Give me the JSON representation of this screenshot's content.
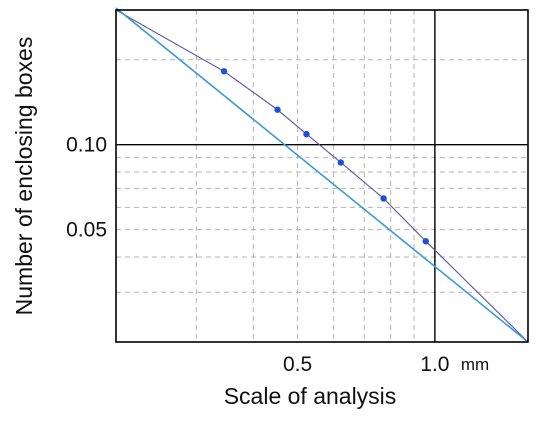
{
  "chart_data": {
    "type": "line",
    "title": "",
    "xlabel": "Scale of analysis",
    "ylabel": "Number of enclosing boxes",
    "x_unit": "mm",
    "x_scale": "log",
    "y_scale": "log",
    "xlim": [
      0.2,
      1.6
    ],
    "ylim": [
      0.02,
      0.3
    ],
    "x_ticks": [
      {
        "value": 0.5,
        "label": "0.5"
      },
      {
        "value": 1.0,
        "label": "1.0"
      }
    ],
    "y_ticks": [
      {
        "value": 0.05,
        "label": "0.05"
      },
      {
        "value": 0.1,
        "label": "0.10"
      }
    ],
    "major_x_lines": [
      1.0
    ],
    "major_y_lines": [
      0.1
    ],
    "minor_x_lines": [
      0.3,
      0.4,
      0.5,
      0.6,
      0.7,
      0.8,
      0.9
    ],
    "minor_y_lines": [
      0.03,
      0.04,
      0.05,
      0.06,
      0.07,
      0.08,
      0.09,
      0.2
    ],
    "grid": true,
    "colors": {
      "fit_line": "#3a9ad9",
      "data_line": "#5a4fa8",
      "points": "#1f4fd6",
      "major_grid": "#000000",
      "minor_grid": "#b5b5b5"
    },
    "series": [
      {
        "values_x": [
          0.2,
          0.345,
          0.452,
          0.523,
          0.622,
          0.772,
          0.955,
          1.6
        ],
        "values_y": [
          0.3,
          0.182,
          0.133,
          0.109,
          0.0865,
          0.0645,
          0.0455,
          0.02
        ]
      },
      {
        "values_x": [
          0.2,
          1.6
        ],
        "values_y": [
          0.305,
          0.02
        ]
      }
    ],
    "points": {
      "x": [
        0.345,
        0.452,
        0.523,
        0.622,
        0.772,
        0.955
      ],
      "y": [
        0.182,
        0.133,
        0.109,
        0.0865,
        0.0645,
        0.0455
      ]
    }
  }
}
